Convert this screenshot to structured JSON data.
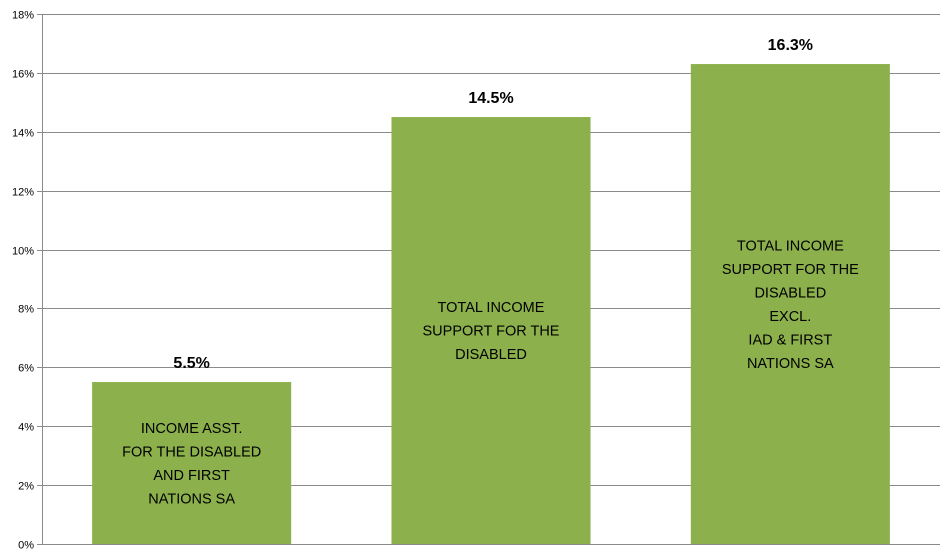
{
  "chart_data": {
    "type": "bar",
    "title": "",
    "xlabel": "",
    "ylabel": "",
    "ylim": [
      0,
      18
    ],
    "y_tick_step": 2,
    "y_tick_format": "percent",
    "grid": true,
    "legend": "none",
    "bar_color": "#8cb04b",
    "categories": [
      "INCOME ASST. FOR THE DISABLED AND FIRST NATIONS SA",
      "TOTAL INCOME SUPPORT FOR THE DISABLED",
      "TOTAL INCOME SUPPORT FOR THE DISABLED EXCL. IAD & FIRST NATIONS SA"
    ],
    "category_label_lines": [
      [
        "INCOME ASST.",
        "FOR THE DISABLED",
        "AND FIRST",
        "NATIONS SA"
      ],
      [
        "TOTAL INCOME",
        "SUPPORT FOR THE",
        "DISABLED"
      ],
      [
        "TOTAL INCOME",
        "SUPPORT FOR THE",
        "DISABLED",
        "EXCL.",
        "IAD & FIRST",
        "NATIONS SA"
      ]
    ],
    "values": [
      5.5,
      14.5,
      16.3
    ],
    "data_labels": [
      "5.5%",
      "14.5%",
      "16.3%"
    ],
    "y_tick_labels": [
      "0%",
      "2%",
      "4%",
      "6%",
      "8%",
      "10%",
      "12%",
      "14%",
      "16%",
      "18%"
    ]
  }
}
